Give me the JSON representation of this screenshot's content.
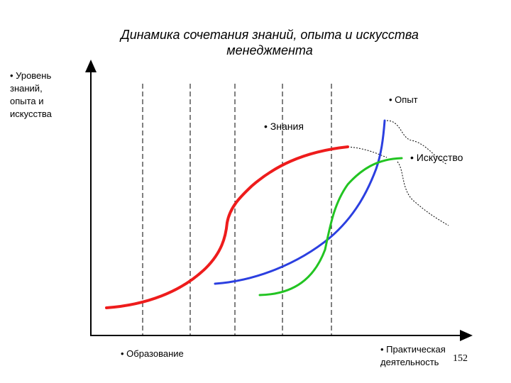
{
  "title_line1": "Динамика сочетания знаний, опыта и искусства",
  "title_line2": "менеджмента",
  "y_axis_label": [
    "• Уровень",
    "знаний,",
    "опыта и",
    "искусства"
  ],
  "labels": {
    "opyt": "• Опыт",
    "znaniya": "• Знания",
    "iskusstvo": "• Искусство",
    "obrazovanie": "• Образование",
    "praktika_line1": "• Практическая",
    "praktika_line2": "деятельность"
  },
  "page_number": "152",
  "colors": {
    "znaniya": "#ee1c1c",
    "opyt": "#2b3fe0",
    "iskusstvo": "#22c422",
    "axis": "#000000"
  }
}
